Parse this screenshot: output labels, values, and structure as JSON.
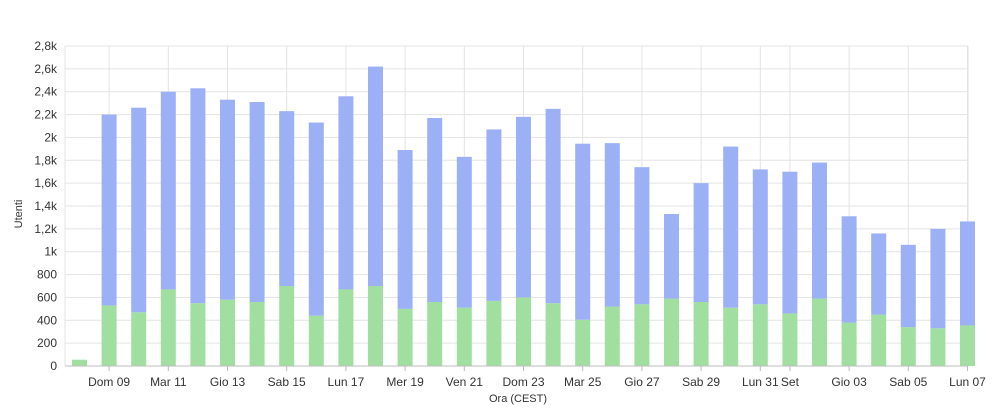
{
  "chart_data": {
    "type": "bar",
    "stacked": true,
    "xlabel": "Ora (CEST)",
    "ylabel": "Utenti",
    "ylim": [
      0,
      2800
    ],
    "yticks": [
      0,
      200,
      400,
      600,
      800,
      1000,
      1200,
      1400,
      1600,
      1800,
      2000,
      2200,
      2400,
      2600,
      2800
    ],
    "ytick_labels": [
      "0",
      "200",
      "400",
      "600",
      "800",
      "1k",
      "1,2k",
      "1,4k",
      "1,6k",
      "1,8k",
      "2k",
      "2,2k",
      "2,4k",
      "2,6k",
      "2,8k"
    ],
    "xtick_labels": [
      {
        "label": "Dom 09",
        "index": 1
      },
      {
        "label": "Mar 11",
        "index": 3
      },
      {
        "label": "Gio 13",
        "index": 5
      },
      {
        "label": "Sab 15",
        "index": 7
      },
      {
        "label": "Lun 17",
        "index": 9
      },
      {
        "label": "Mer 19",
        "index": 11
      },
      {
        "label": "Ven 21",
        "index": 13
      },
      {
        "label": "Dom 23",
        "index": 15
      },
      {
        "label": "Mar 25",
        "index": 17
      },
      {
        "label": "Gio 27",
        "index": 19
      },
      {
        "label": "Sab 29",
        "index": 21
      },
      {
        "label": "Lun 31",
        "index": 23
      },
      {
        "label": "Set",
        "index": 24
      },
      {
        "label": "Gio 03",
        "index": 26
      },
      {
        "label": "Sab 05",
        "index": 28
      },
      {
        "label": "Lun 07",
        "index": 30
      }
    ],
    "series": [
      {
        "color": "#a0dfa0",
        "values": [
          55,
          530,
          470,
          670,
          550,
          580,
          560,
          700,
          440,
          670,
          700,
          500,
          560,
          510,
          570,
          600,
          550,
          405,
          520,
          540,
          590,
          560,
          510,
          540,
          460,
          590,
          380,
          450,
          340,
          330,
          355
        ]
      },
      {
        "color": "#9cb0f5",
        "values": [
          0,
          1670,
          1790,
          1730,
          1880,
          1750,
          1750,
          1530,
          1690,
          1690,
          1920,
          1390,
          1610,
          1320,
          1500,
          1580,
          1700,
          1540,
          1430,
          1200,
          740,
          1040,
          1410,
          1180,
          1240,
          1190,
          930,
          710,
          720,
          870,
          910
        ]
      }
    ],
    "grid": true,
    "legend": "none"
  }
}
